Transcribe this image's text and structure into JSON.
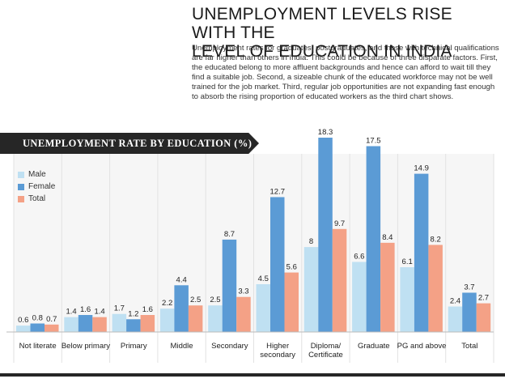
{
  "article": {
    "headline_line1": "UNEMPLOYMENT LEVELS RISE WITH THE",
    "headline_line2": "LEVEL OF EDUCATION IN INDIA",
    "body": "Unemployment rates for graduates, postgraduates, and those with technical qualifications are far higher than others in India. This could be because of three disparate factors. First, the educated belong to more affluent backgrounds and hence can afford to wait till they find a suitable job. Second, a sizeable chunk of the educated workforce may not be well trained for the job market. Third, regular job opportunities are not expanding fast enough to absorb the rising proportion of educated workers as the third chart shows."
  },
  "chart_data": {
    "type": "bar",
    "title": "UNEMPLOYMENT RATE BY EDUCATION (%)",
    "categories": [
      [
        "Not literate"
      ],
      [
        "Below primary"
      ],
      [
        "Primary"
      ],
      [
        "Middle"
      ],
      [
        "Secondary"
      ],
      [
        "Higher",
        "secondary"
      ],
      [
        "Diploma/",
        "Certificate"
      ],
      [
        "Graduate"
      ],
      [
        "PG and above"
      ],
      [
        "Total"
      ]
    ],
    "series": [
      {
        "name": "Male",
        "color": "#bfe0f2",
        "values": [
          0.6,
          1.4,
          1.7,
          2.2,
          2.5,
          4.5,
          8,
          6.6,
          6.1,
          2.4
        ],
        "labels": [
          "0.6",
          "1.4",
          "1.7",
          "2.2",
          "2.5",
          "4.5",
          "8",
          "6.6",
          "6.1",
          "2.4"
        ]
      },
      {
        "name": "Female",
        "color": "#5b9bd5",
        "values": [
          0.8,
          1.6,
          1.2,
          4.4,
          8.7,
          12.7,
          18.3,
          17.5,
          14.9,
          3.7
        ],
        "labels": [
          "0.8",
          "1.6",
          "1.2",
          "4.4",
          "8.7",
          "12.7",
          "18.3",
          "17.5",
          "14.9",
          "3.7"
        ]
      },
      {
        "name": "Total",
        "color": "#f4a186",
        "values": [
          0.7,
          1.4,
          1.6,
          2.5,
          3.3,
          5.6,
          9.7,
          8.4,
          8.2,
          2.7
        ],
        "labels": [
          "0.7",
          "1.4",
          "1.6",
          "2.5",
          "3.3",
          "5.6",
          "9.7",
          "8.4",
          "8.2",
          "2.7"
        ]
      }
    ],
    "ylim": [
      0,
      18.3
    ],
    "xlabel": "",
    "ylabel": "",
    "legend_position": "top-left"
  }
}
